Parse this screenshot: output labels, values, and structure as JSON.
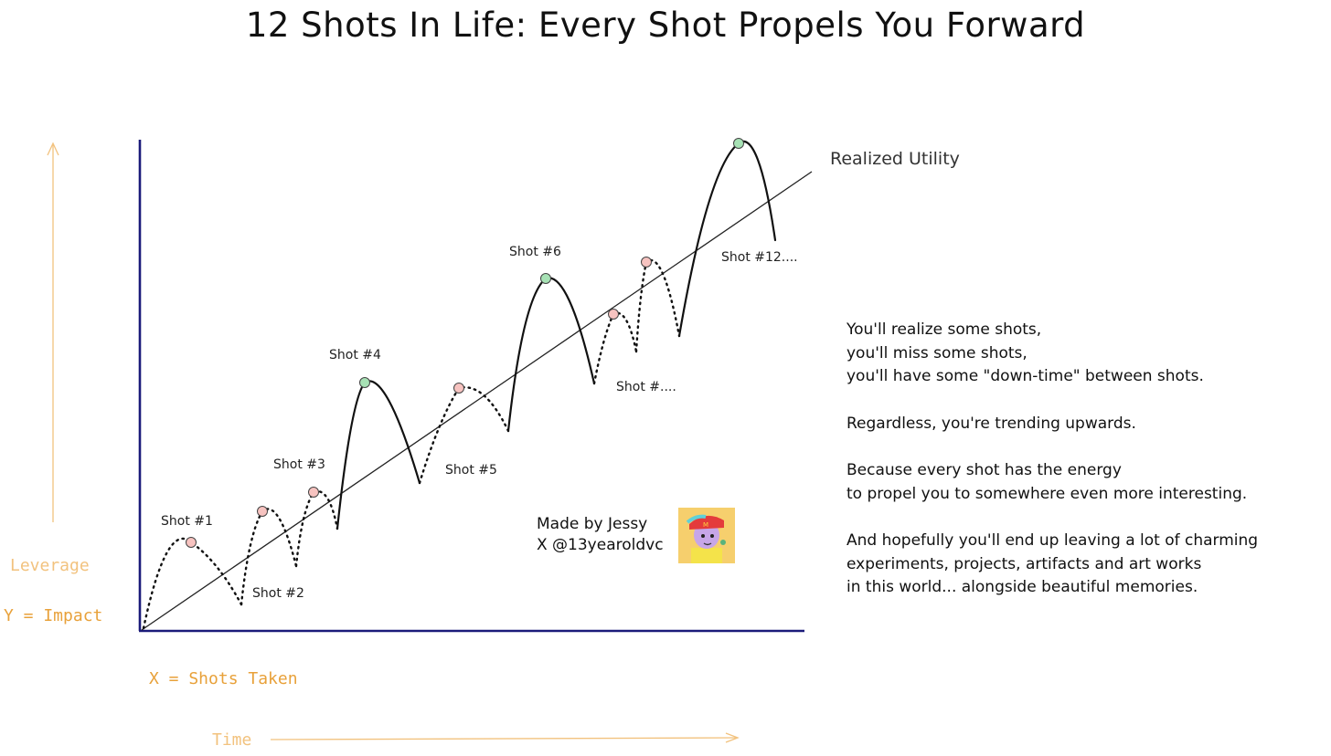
{
  "title": "12 Shots In Life: Every Shot Propels You Forward",
  "diagram": {
    "trend_line_label": "Realized Utility",
    "shots": [
      {
        "label": "Shot #1"
      },
      {
        "label": "Shot #2"
      },
      {
        "label": "Shot #3"
      },
      {
        "label": "Shot #4"
      },
      {
        "label": "Shot #5"
      },
      {
        "label": "Shot #6"
      },
      {
        "label": "Shot #...."
      },
      {
        "label": "Shot #12...."
      }
    ],
    "axis_notes": {
      "y_leverage": "Leverage",
      "y_impact": "Y = Impact",
      "x_shots": "X = Shots Taken",
      "x_time": "Time"
    },
    "colors": {
      "axis": "#1b1b7a",
      "realized_marker": "#a7e2b5",
      "missed_marker": "#f7c3c0",
      "note_accent": "#e8a13a",
      "curve": "#111111"
    }
  },
  "narrative": {
    "lines_1": [
      "You'll realize some shots,",
      "you'll miss some shots,",
      "you'll have some \"down-time\" between shots."
    ],
    "line_2": "Regardless, you're trending upwards.",
    "lines_3": [
      "Because every shot has the energy",
      "to propel you to somewhere even more interesting."
    ],
    "lines_4": [
      "And hopefully you'll end up leaving a lot of charming",
      "experiments, projects, artifacts and art works",
      "in this world... alongside beautiful memories."
    ]
  },
  "credit": {
    "line_1": "Made by Jessy",
    "line_2": "X @13yearoldvc"
  }
}
